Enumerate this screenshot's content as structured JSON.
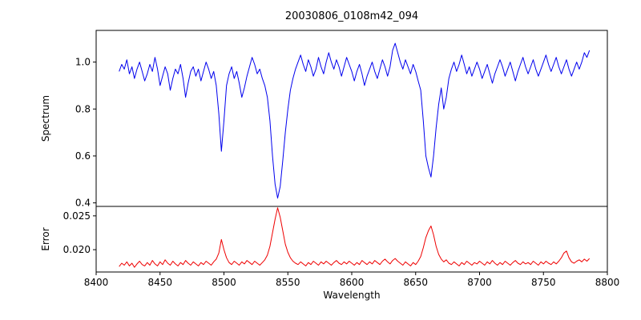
{
  "figure": {
    "title": "20030806_0108m42_094",
    "xlabel": "Wavelength",
    "ylabel_top": "Spectrum",
    "ylabel_bottom": "Error"
  },
  "chart_data": [
    {
      "type": "line",
      "name": "spectrum",
      "title": "20030806_0108m42_094",
      "xlabel": "Wavelength",
      "ylabel": "Spectrum",
      "color": "#0000ee",
      "grid": false,
      "legend": "none",
      "xlim": [
        8400,
        8800
      ],
      "ylim": [
        0.385,
        1.135
      ],
      "xticks": [
        8400,
        8450,
        8500,
        8550,
        8600,
        8650,
        8700,
        8750,
        8800
      ],
      "xtick_labels": [
        "8400",
        "8450",
        "8500",
        "8550",
        "8600",
        "8650",
        "8700",
        "8750",
        "8800"
      ],
      "yticks": [
        0.4,
        0.6,
        0.8,
        1.0
      ],
      "ytick_labels": [
        "0.4",
        "0.6",
        "0.8",
        "1.0"
      ],
      "x_start": 8418,
      "x_step": 2,
      "values": [
        0.96,
        0.99,
        0.97,
        1.01,
        0.95,
        0.98,
        0.93,
        0.97,
        1.0,
        0.96,
        0.92,
        0.95,
        0.99,
        0.96,
        1.02,
        0.97,
        0.9,
        0.94,
        0.98,
        0.95,
        0.88,
        0.93,
        0.97,
        0.95,
        0.99,
        0.93,
        0.85,
        0.91,
        0.96,
        0.98,
        0.94,
        0.97,
        0.92,
        0.96,
        1.0,
        0.97,
        0.93,
        0.96,
        0.9,
        0.78,
        0.62,
        0.75,
        0.9,
        0.95,
        0.98,
        0.93,
        0.96,
        0.91,
        0.85,
        0.89,
        0.94,
        0.98,
        1.02,
        0.99,
        0.95,
        0.97,
        0.93,
        0.9,
        0.85,
        0.75,
        0.6,
        0.48,
        0.42,
        0.47,
        0.58,
        0.7,
        0.8,
        0.88,
        0.93,
        0.97,
        1.0,
        1.03,
        0.99,
        0.96,
        1.01,
        0.98,
        0.94,
        0.97,
        1.02,
        0.98,
        0.95,
        1.0,
        1.04,
        1.0,
        0.97,
        1.01,
        0.98,
        0.94,
        0.98,
        1.02,
        0.99,
        0.96,
        0.92,
        0.96,
        0.99,
        0.95,
        0.9,
        0.94,
        0.97,
        1.0,
        0.96,
        0.93,
        0.97,
        1.01,
        0.98,
        0.94,
        0.98,
        1.05,
        1.08,
        1.04,
        1.0,
        0.97,
        1.01,
        0.98,
        0.95,
        0.99,
        0.96,
        0.92,
        0.88,
        0.75,
        0.6,
        0.55,
        0.51,
        0.6,
        0.72,
        0.82,
        0.89,
        0.8,
        0.85,
        0.93,
        0.97,
        1.0,
        0.96,
        0.99,
        1.03,
        0.99,
        0.95,
        0.98,
        0.94,
        0.97,
        1.0,
        0.97,
        0.93,
        0.96,
        0.99,
        0.95,
        0.91,
        0.95,
        0.98,
        1.01,
        0.98,
        0.94,
        0.97,
        1.0,
        0.96,
        0.92,
        0.96,
        0.99,
        1.02,
        0.98,
        0.95,
        0.98,
        1.01,
        0.97,
        0.94,
        0.97,
        1.0,
        1.03,
        0.99,
        0.96,
        0.99,
        1.02,
        0.98,
        0.95,
        0.98,
        1.01,
        0.97,
        0.94,
        0.97,
        1.0,
        0.97,
        1.0,
        1.04,
        1.02,
        1.05
      ],
      "absorption_line_minima": [
        {
          "wavelength": 8498,
          "flux": 0.62
        },
        {
          "wavelength": 8542,
          "flux": 0.42
        },
        {
          "wavelength": 8662,
          "flux": 0.51
        }
      ]
    },
    {
      "type": "line",
      "name": "error",
      "ylabel": "Error",
      "color": "#ee0000",
      "grid": false,
      "legend": "none",
      "xlim": [
        8400,
        8800
      ],
      "ylim": [
        0.0167,
        0.0264
      ],
      "yticks": [
        0.02,
        0.025
      ],
      "ytick_labels": [
        "0.020",
        "0.025"
      ],
      "x_start": 8418,
      "x_step": 2,
      "values": [
        0.0175,
        0.018,
        0.0177,
        0.0182,
        0.0176,
        0.018,
        0.0174,
        0.0179,
        0.0183,
        0.0178,
        0.0176,
        0.0181,
        0.0177,
        0.0184,
        0.0179,
        0.0176,
        0.0182,
        0.0178,
        0.0185,
        0.018,
        0.0177,
        0.0183,
        0.0179,
        0.0176,
        0.0181,
        0.0178,
        0.0184,
        0.018,
        0.0177,
        0.0182,
        0.0179,
        0.0176,
        0.0181,
        0.0178,
        0.0183,
        0.018,
        0.0177,
        0.0182,
        0.0186,
        0.0195,
        0.0215,
        0.02,
        0.0188,
        0.0181,
        0.0178,
        0.0183,
        0.018,
        0.0177,
        0.0182,
        0.0179,
        0.0184,
        0.0181,
        0.0178,
        0.0183,
        0.018,
        0.0177,
        0.0181,
        0.0185,
        0.0192,
        0.0205,
        0.0225,
        0.0245,
        0.0262,
        0.0248,
        0.0228,
        0.0208,
        0.0196,
        0.0188,
        0.0183,
        0.018,
        0.0178,
        0.0182,
        0.0179,
        0.0176,
        0.0181,
        0.0178,
        0.0183,
        0.018,
        0.0177,
        0.0182,
        0.0179,
        0.0183,
        0.018,
        0.0177,
        0.0181,
        0.0184,
        0.018,
        0.0178,
        0.0182,
        0.0179,
        0.0183,
        0.018,
        0.0177,
        0.0181,
        0.0178,
        0.0184,
        0.0181,
        0.0178,
        0.0182,
        0.0179,
        0.0184,
        0.0181,
        0.0178,
        0.0183,
        0.0186,
        0.0182,
        0.0179,
        0.0184,
        0.0187,
        0.0183,
        0.018,
        0.0177,
        0.0182,
        0.0179,
        0.0176,
        0.0181,
        0.0178,
        0.0183,
        0.019,
        0.0203,
        0.0218,
        0.0228,
        0.0235,
        0.0222,
        0.0205,
        0.0193,
        0.0186,
        0.0182,
        0.0185,
        0.018,
        0.0178,
        0.0182,
        0.0179,
        0.0176,
        0.0181,
        0.0178,
        0.0183,
        0.018,
        0.0177,
        0.0181,
        0.0179,
        0.0183,
        0.018,
        0.0177,
        0.0182,
        0.0179,
        0.0184,
        0.018,
        0.0177,
        0.0181,
        0.0178,
        0.0183,
        0.018,
        0.0177,
        0.0181,
        0.0184,
        0.018,
        0.0178,
        0.0182,
        0.0179,
        0.0181,
        0.0178,
        0.0183,
        0.018,
        0.0177,
        0.0182,
        0.0179,
        0.0183,
        0.018,
        0.0178,
        0.0182,
        0.0179,
        0.0183,
        0.0188,
        0.0195,
        0.0198,
        0.0188,
        0.0182,
        0.018,
        0.0183,
        0.0185,
        0.0182,
        0.0186,
        0.0183,
        0.0187
      ]
    }
  ]
}
